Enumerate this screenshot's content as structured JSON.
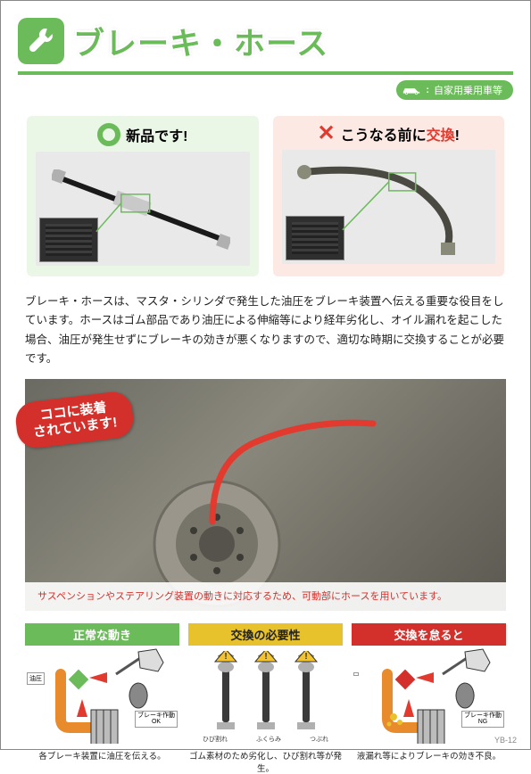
{
  "header": {
    "title": "ブレーキ・ホース",
    "badge_label": "自家用乗用車等"
  },
  "compare": {
    "good": {
      "label": "新品です!"
    },
    "bad": {
      "prefix": "こうなる前に",
      "highlight": "交換",
      "suffix": "!"
    }
  },
  "body_paragraph": "ブレーキ・ホースは、マスタ・シリンダで発生した油圧をブレーキ装置へ伝える重要な役目をしています。ホースはゴム部品であり油圧による伸縮等により経年劣化し、オイル漏れを起こした場合、油圧が発生せずにブレーキの効きが悪くなりますので、適切な時期に交換することが必要です。",
  "install": {
    "banner": "ココに装着\nされています!",
    "caption": "サスペンションやステアリング装置の動きに対応するため、可動部にホースを用いています。"
  },
  "columns": [
    {
      "header": "正常な動き",
      "header_class": "hdr-green",
      "caption": "各ブレーキ装置に油圧を伝える。",
      "left_label": "油圧",
      "right_label": "ブレーキ作動\nOK",
      "state": "ok"
    },
    {
      "header": "交換の必要性",
      "header_class": "hdr-yellow",
      "caption": "ゴム素材のため劣化し、ひび割れ等が発生。",
      "mini_labels": [
        "ひび割れ",
        "ふくらみ",
        "つぶれ"
      ],
      "state": "warn"
    },
    {
      "header": "交換を怠ると",
      "header_class": "hdr-red",
      "caption": "液漏れ等によりブレーキの効き不良。",
      "left_label": "",
      "right_label": "ブレーキ作動\nNG",
      "state": "ng"
    }
  ],
  "page_number": "YB-12",
  "colors": {
    "green": "#6cbb5a",
    "red": "#d4302b",
    "yellow": "#e8c22c",
    "pale_green": "#eaf6e6",
    "pale_red": "#fde9e4"
  }
}
